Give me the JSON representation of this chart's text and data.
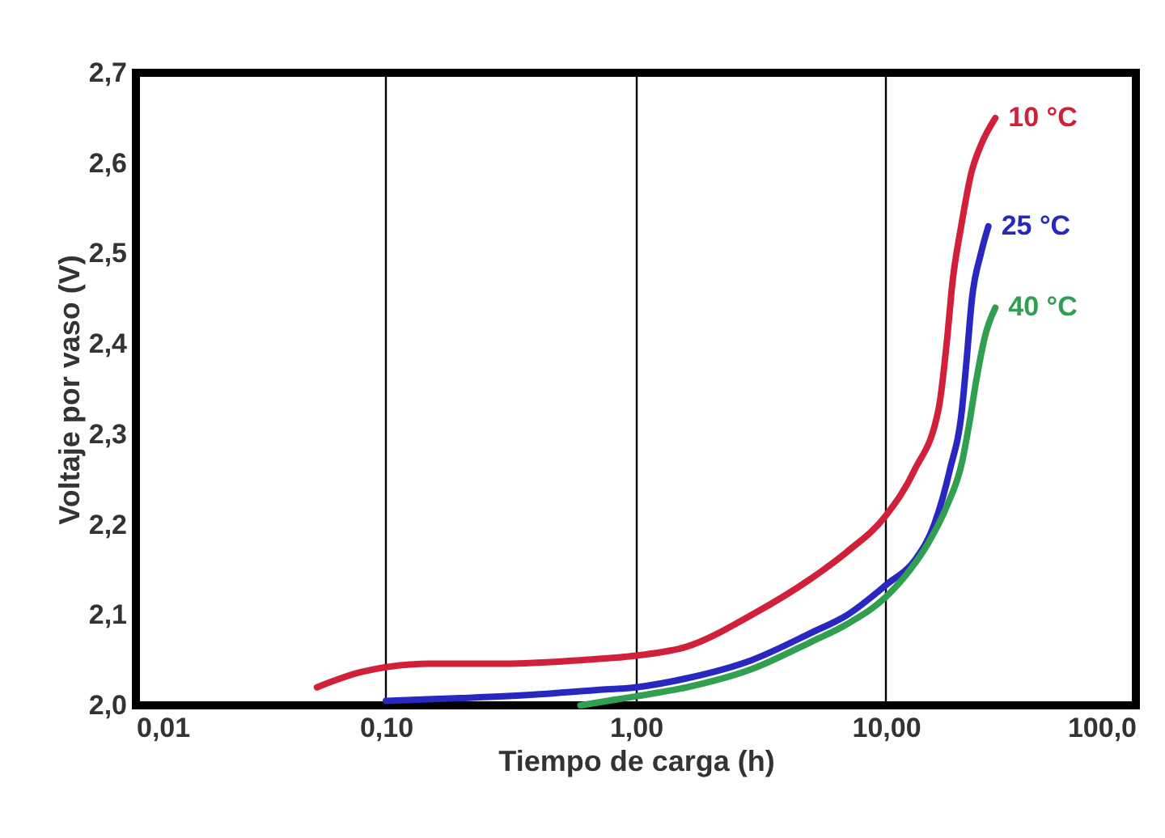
{
  "chart_data": {
    "type": "line",
    "xlabel": "Tiempo de carga (h)",
    "ylabel": "Voltaje por vaso (V)",
    "log": "x",
    "grid": "x",
    "legend": false,
    "line_style": "solid",
    "xlim": [
      0.01,
      100
    ],
    "xticks": [
      {
        "value": 0.01,
        "label": "0,01"
      },
      {
        "value": 0.1,
        "label": "0,10"
      },
      {
        "value": 1,
        "label": "1,00"
      },
      {
        "value": 10,
        "label": "10,00"
      },
      {
        "value": 100,
        "label": "100,0"
      }
    ],
    "ylim": [
      2.0,
      2.7
    ],
    "yticks": [
      {
        "value": 2.0,
        "label": "2,0"
      },
      {
        "value": 2.1,
        "label": "2,1"
      },
      {
        "value": 2.2,
        "label": "2,2"
      },
      {
        "value": 2.3,
        "label": "2,3"
      },
      {
        "value": 2.4,
        "label": "2,4"
      },
      {
        "value": 2.5,
        "label": "2,5"
      },
      {
        "value": 2.6,
        "label": "2,6"
      },
      {
        "value": 2.7,
        "label": "2,7"
      }
    ],
    "series": [
      {
        "name": "10 °C",
        "color": "#d0203a",
        "x": [
          0.053,
          0.08,
          0.15,
          0.3,
          0.6,
          1.0,
          1.6,
          2.9,
          5,
          7,
          10,
          13,
          16.3,
          17.5,
          18.5,
          20,
          22,
          24,
          27.4
        ],
        "values": [
          2.02,
          2.037,
          2.046,
          2.046,
          2.05,
          2.055,
          2.065,
          2.1,
          2.14,
          2.17,
          2.21,
          2.26,
          2.33,
          2.4,
          2.47,
          2.53,
          2.59,
          2.62,
          2.65
        ]
      },
      {
        "name": "25 °C",
        "color": "#2828c0",
        "x": [
          0.1,
          0.2,
          0.4,
          0.7,
          1.0,
          1.6,
          2.9,
          5,
          7,
          10.2,
          13,
          15.6,
          18,
          20.2,
          21,
          22.1,
          24,
          25.7
        ],
        "values": [
          2.005,
          2.008,
          2.012,
          2.017,
          2.02,
          2.03,
          2.05,
          2.08,
          2.1,
          2.135,
          2.16,
          2.2,
          2.26,
          2.33,
          2.38,
          2.45,
          2.5,
          2.53
        ]
      },
      {
        "name": "40 °C",
        "color": "#30a050",
        "x": [
          0.6,
          1.0,
          1.6,
          2.9,
          5,
          7,
          10,
          12.5,
          14.8,
          17.5,
          20.2,
          21.5,
          23,
          25,
          27.4
        ],
        "values": [
          2.0,
          2.01,
          2.02,
          2.04,
          2.07,
          2.09,
          2.12,
          2.15,
          2.18,
          2.22,
          2.27,
          2.31,
          2.36,
          2.41,
          2.44
        ]
      }
    ]
  }
}
